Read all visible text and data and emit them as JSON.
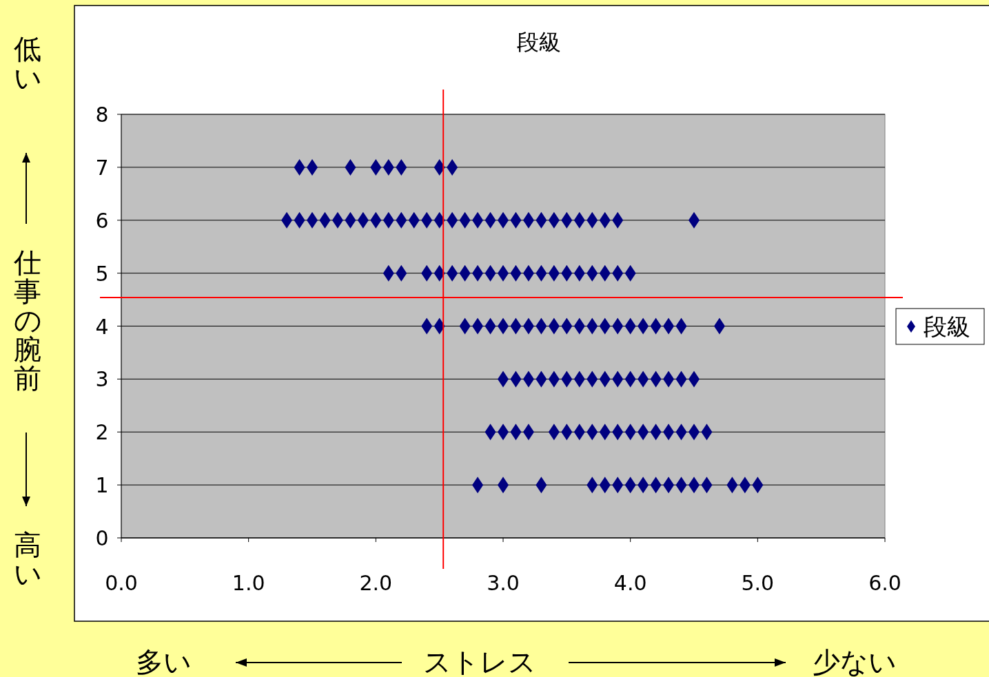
{
  "chart_data": {
    "type": "scatter",
    "title": "段級",
    "xlabel": "ストレス",
    "ylabel": "仕事の腕前",
    "annotations": [
      "低い",
      "高い",
      "多い",
      "少ない"
    ],
    "xlim": [
      0,
      6
    ],
    "xticks": [
      {
        "value": 0,
        "label": "0.0"
      },
      {
        "value": 1,
        "label": "1.0"
      },
      {
        "value": 2,
        "label": "2.0"
      },
      {
        "value": 3,
        "label": "3.0"
      },
      {
        "value": 4,
        "label": "4.0"
      },
      {
        "value": 5,
        "label": "5.0"
      },
      {
        "value": 6,
        "label": "6.0"
      }
    ],
    "ylim": [
      0,
      8
    ],
    "yticks": [
      0,
      1,
      2,
      3,
      4,
      5,
      6,
      7,
      8
    ],
    "grid": "y",
    "legend": "right",
    "marker": "diamond",
    "ref_lines": [
      {
        "axis": "x",
        "value": 2.53,
        "color": "#ff0000"
      },
      {
        "axis": "y",
        "value": 4.54,
        "color": "#ff0000"
      }
    ],
    "series": [
      {
        "name": "段級",
        "color": "#000080",
        "x": [
          1.4,
          1.5,
          1.8,
          2.0,
          2.1,
          2.2,
          2.5,
          2.6,
          1.3,
          1.4,
          1.5,
          1.6,
          1.7,
          1.8,
          1.9,
          2.0,
          2.1,
          2.2,
          2.3,
          2.4,
          2.5,
          2.6,
          2.7,
          2.8,
          2.9,
          3.0,
          3.1,
          3.2,
          3.3,
          3.4,
          3.5,
          3.6,
          3.7,
          3.8,
          3.9,
          4.5,
          2.1,
          2.2,
          2.4,
          2.5,
          2.6,
          2.7,
          2.8,
          2.9,
          3.0,
          3.1,
          3.2,
          3.3,
          3.4,
          3.5,
          3.6,
          3.7,
          3.8,
          3.9,
          4.0,
          2.4,
          2.5,
          2.7,
          2.8,
          2.9,
          3.0,
          3.1,
          3.2,
          3.3,
          3.4,
          3.5,
          3.6,
          3.7,
          3.8,
          3.9,
          4.0,
          4.1,
          4.2,
          4.3,
          4.4,
          4.7,
          3.0,
          3.1,
          3.2,
          3.3,
          3.4,
          3.5,
          3.6,
          3.7,
          3.8,
          3.9,
          4.0,
          4.1,
          4.2,
          4.3,
          4.4,
          4.5,
          2.9,
          3.0,
          3.1,
          3.2,
          3.4,
          3.5,
          3.6,
          3.7,
          3.8,
          3.9,
          4.0,
          4.1,
          4.2,
          4.3,
          4.4,
          4.5,
          4.6,
          2.8,
          3.0,
          3.3,
          3.7,
          3.8,
          3.9,
          4.0,
          4.1,
          4.2,
          4.3,
          4.4,
          4.5,
          4.6,
          4.8,
          4.9,
          5.0
        ],
        "values": [
          7,
          7,
          7,
          7,
          7,
          7,
          7,
          7,
          6,
          6,
          6,
          6,
          6,
          6,
          6,
          6,
          6,
          6,
          6,
          6,
          6,
          6,
          6,
          6,
          6,
          6,
          6,
          6,
          6,
          6,
          6,
          6,
          6,
          6,
          6,
          6,
          5,
          5,
          5,
          5,
          5,
          5,
          5,
          5,
          5,
          5,
          5,
          5,
          5,
          5,
          5,
          5,
          5,
          5,
          5,
          4,
          4,
          4,
          4,
          4,
          4,
          4,
          4,
          4,
          4,
          4,
          4,
          4,
          4,
          4,
          4,
          4,
          4,
          4,
          4,
          4,
          3,
          3,
          3,
          3,
          3,
          3,
          3,
          3,
          3,
          3,
          3,
          3,
          3,
          3,
          3,
          3,
          2,
          2,
          2,
          2,
          2,
          2,
          2,
          2,
          2,
          2,
          2,
          2,
          2,
          2,
          2,
          2,
          2,
          1,
          1,
          1,
          1,
          1,
          1,
          1,
          1,
          1,
          1,
          1,
          1,
          1,
          1,
          1,
          1
        ]
      }
    ]
  }
}
